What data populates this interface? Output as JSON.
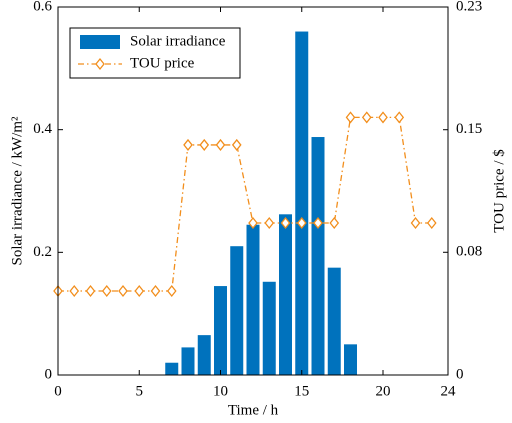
{
  "chart_data": {
    "type": "combo",
    "x_label": "Time / h",
    "y_label": "Solar irradiance / kW/m²",
    "y2_label": "TOU price / $",
    "xlim": [
      0,
      24
    ],
    "xticks": [
      0,
      5,
      10,
      15,
      20,
      24
    ],
    "ylim": [
      0,
      0.6
    ],
    "yticks": [
      0,
      0.2,
      0.4,
      0.6
    ],
    "y2lim": [
      0,
      0.23
    ],
    "y2ticks": [
      0,
      {
        "value": 0.0767,
        "label": "0.08"
      },
      {
        "value": 0.1533,
        "label": "0.15"
      },
      0.23
    ],
    "legend": "upper left",
    "series": [
      {
        "name": "Solar irradiance",
        "type": "bar",
        "color": "#0072bd",
        "x": [
          7,
          8,
          9,
          10,
          11,
          12,
          13,
          14,
          15,
          16,
          17,
          18
        ],
        "values": [
          0.02,
          0.045,
          0.065,
          0.145,
          0.21,
          0.245,
          0.152,
          0.262,
          0.56,
          0.388,
          0.175,
          0.05
        ]
      },
      {
        "name": "TOU price",
        "type": "line",
        "axis": "y2",
        "color": "#f28e1c",
        "x": [
          0,
          1,
          2,
          3,
          4,
          5,
          6,
          7,
          8,
          9,
          10,
          11,
          12,
          13,
          14,
          15,
          16,
          17,
          18,
          19,
          20,
          21,
          22,
          23
        ],
        "values": [
          0.0525,
          0.0525,
          0.0525,
          0.0525,
          0.0525,
          0.0525,
          0.0525,
          0.0525,
          0.1438,
          0.1438,
          0.1438,
          0.1438,
          0.095,
          0.095,
          0.095,
          0.095,
          0.095,
          0.095,
          0.161,
          0.161,
          0.161,
          0.161,
          0.095,
          0.095
        ]
      }
    ]
  }
}
